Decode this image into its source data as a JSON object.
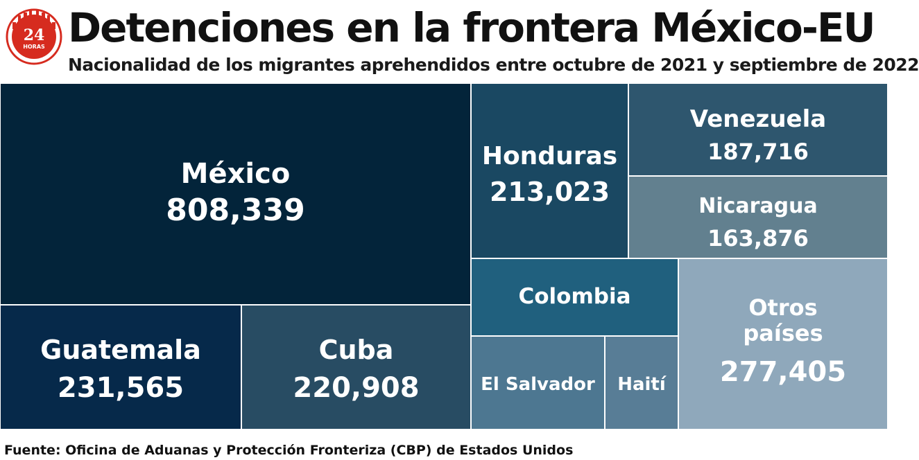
{
  "header": {
    "title": "Detenciones en la frontera México-EU",
    "subtitle": "Nacionalidad de los migrantes aprehendidos entre octubre de 2021 y septiembre de 2022"
  },
  "logo": {
    "number": "24",
    "word": "HORAS",
    "color": "#d62b1f"
  },
  "chart_data": {
    "type": "treemap",
    "title": "Detenciones en la frontera México-EU",
    "subtitle": "Nacionalidad de los migrantes aprehendidos entre octubre de 2021 y septiembre de 2022",
    "items": [
      {
        "label": "México",
        "value": 808339,
        "value_text": "808,339",
        "color": "#03243a"
      },
      {
        "label": "Guatemala",
        "value": 231565,
        "value_text": "231,565",
        "color": "#06294a"
      },
      {
        "label": "Cuba",
        "value": 220908,
        "value_text": "220,908",
        "color": "#284c63"
      },
      {
        "label": "Honduras",
        "value": 213023,
        "value_text": "213,023",
        "color": "#1a4862"
      },
      {
        "label": "Venezuela",
        "value": 187716,
        "value_text": "187,716",
        "color": "#2e566e"
      },
      {
        "label": "Nicaragua",
        "value": 163876,
        "value_text": "163,876",
        "color": "#62808f"
      },
      {
        "label": "Colombia",
        "value": null,
        "value_text": "",
        "color": "#20607e"
      },
      {
        "label": "El Salvador",
        "value": null,
        "value_text": "",
        "color": "#4d7791"
      },
      {
        "label": "Haití",
        "value": null,
        "value_text": "",
        "color": "#587d96"
      },
      {
        "label": "Otros países",
        "value": 277405,
        "value_text": "277,405",
        "color": "#8fa8bb"
      }
    ]
  },
  "footer": {
    "source": "Fuente: Oficina de Aduanas y Protección Fronteriza (CBP) de Estados Unidos"
  }
}
